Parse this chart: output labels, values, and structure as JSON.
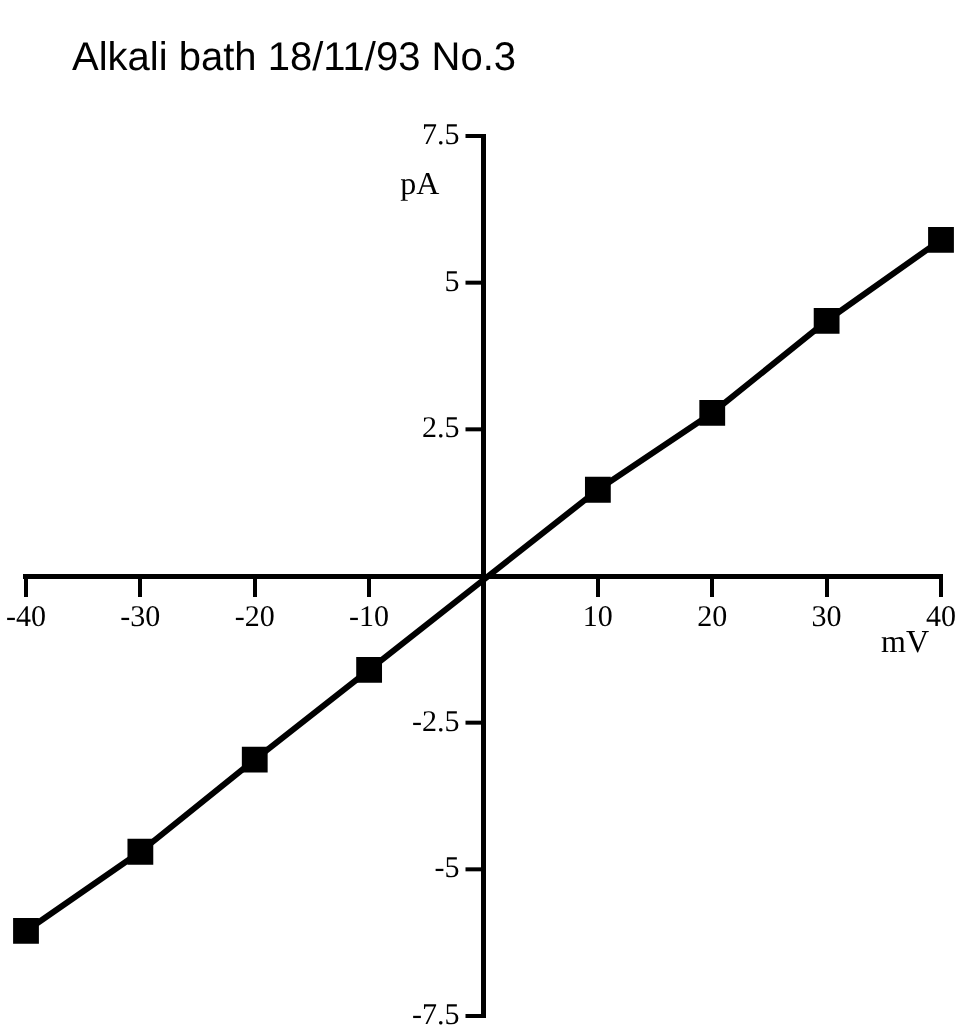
{
  "chart_data": {
    "type": "line",
    "title": "Alkali bath 18/11/93 No.3",
    "xlabel": "mV",
    "ylabel": "pA",
    "x": [
      -40,
      -30,
      -20,
      -10,
      10,
      20,
      30,
      40
    ],
    "series": [
      {
        "color": "#000000",
        "values": [
          -6.05,
          -4.7,
          -3.13,
          -1.6,
          1.47,
          2.78,
          4.35,
          5.73
        ]
      }
    ],
    "xlim": [
      -40,
      40
    ],
    "xticks": [
      -40,
      -30,
      -20,
      -10,
      10,
      20,
      30,
      40
    ],
    "ylim": [
      -7.5,
      7.5
    ],
    "yticks": [
      -7.5,
      -5,
      -2.5,
      2.5,
      5,
      7.5
    ],
    "grid": false,
    "legend": false,
    "marker": "square",
    "line_style": "solid"
  }
}
